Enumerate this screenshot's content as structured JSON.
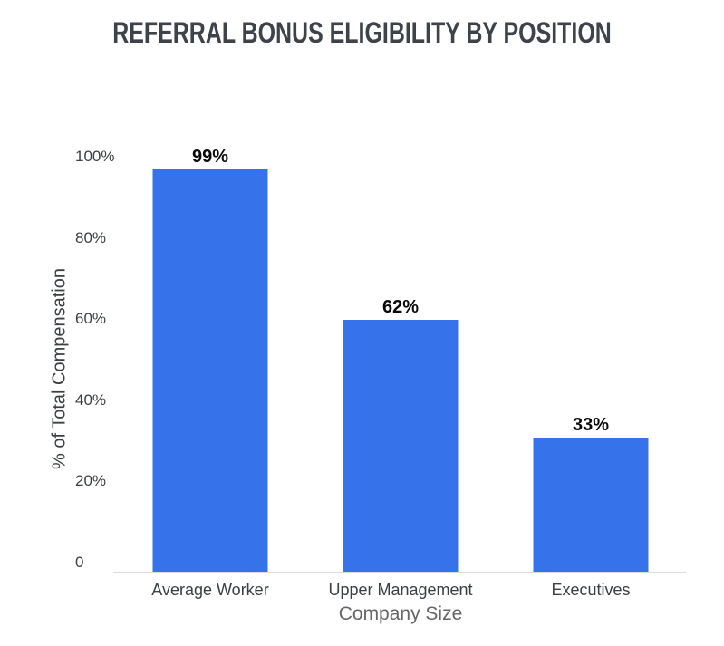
{
  "chart_data": {
    "type": "bar",
    "title": "REFERRAL BONUS ELIGIBILITY BY POSITION",
    "xlabel": "Company Size",
    "ylabel": "% of Total Compensation",
    "categories": [
      "Average Worker",
      "Upper Management",
      "Executives"
    ],
    "values": [
      99,
      62,
      33
    ],
    "value_labels": [
      "99%",
      "62%",
      "33%"
    ],
    "ylim": [
      0,
      100
    ],
    "yticks": [
      {
        "value": 0,
        "label": "0"
      },
      {
        "value": 20,
        "label": "20%"
      },
      {
        "value": 40,
        "label": "40%"
      },
      {
        "value": 60,
        "label": "60%"
      },
      {
        "value": 80,
        "label": "80%"
      },
      {
        "value": 100,
        "label": "100%"
      }
    ],
    "grid": false,
    "legend_position": "none",
    "colors": {
      "bar": "#3672EA",
      "title": "#3E434A",
      "tick_label": "#3C4043",
      "category_label": "#3C4043",
      "value_label": "#0B0B0B",
      "xlabel": "#666666",
      "ylabel": "#3C4043",
      "axis_line": "#DCDCDC",
      "background": "#FFFFFF"
    }
  }
}
